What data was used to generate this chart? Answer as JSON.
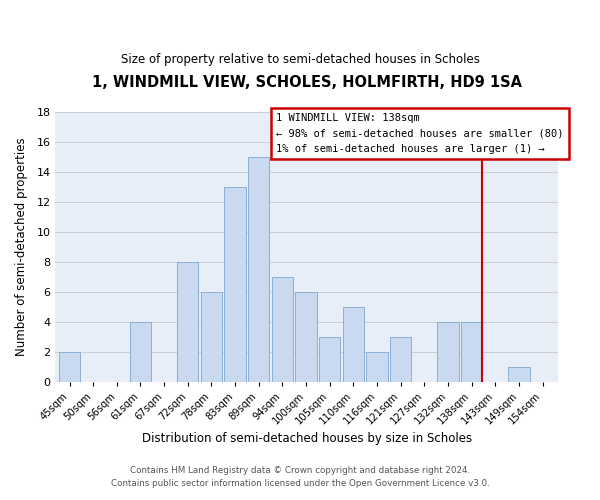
{
  "title": "1, WINDMILL VIEW, SCHOLES, HOLMFIRTH, HD9 1SA",
  "subtitle": "Size of property relative to semi-detached houses in Scholes",
  "xlabel": "Distribution of semi-detached houses by size in Scholes",
  "ylabel": "Number of semi-detached properties",
  "footer_line1": "Contains HM Land Registry data © Crown copyright and database right 2024.",
  "footer_line2": "Contains public sector information licensed under the Open Government Licence v3.0.",
  "categories": [
    "45sqm",
    "50sqm",
    "56sqm",
    "61sqm",
    "67sqm",
    "72sqm",
    "78sqm",
    "83sqm",
    "89sqm",
    "94sqm",
    "100sqm",
    "105sqm",
    "110sqm",
    "116sqm",
    "121sqm",
    "127sqm",
    "132sqm",
    "138sqm",
    "143sqm",
    "149sqm",
    "154sqm"
  ],
  "values": [
    2,
    0,
    0,
    4,
    0,
    8,
    6,
    13,
    15,
    7,
    6,
    3,
    5,
    2,
    3,
    0,
    4,
    4,
    0,
    1,
    0
  ],
  "bar_color": "#c9d9f0",
  "bar_edge_color": "#8cafd4",
  "highlight_index": 17,
  "highlight_line_color": "#cc0000",
  "ylim": [
    0,
    18
  ],
  "yticks": [
    0,
    2,
    4,
    6,
    8,
    10,
    12,
    14,
    16,
    18
  ],
  "annotation_title": "1 WINDMILL VIEW: 138sqm",
  "annotation_line1": "← 98% of semi-detached houses are smaller (80)",
  "annotation_line2": "1% of semi-detached houses are larger (1) →",
  "annotation_box_color": "#ffffff",
  "annotation_box_edge": "#cc0000",
  "grid_color": "#c8c8c8",
  "background_color": "#ffffff",
  "plot_bg_color": "#e8eef8"
}
